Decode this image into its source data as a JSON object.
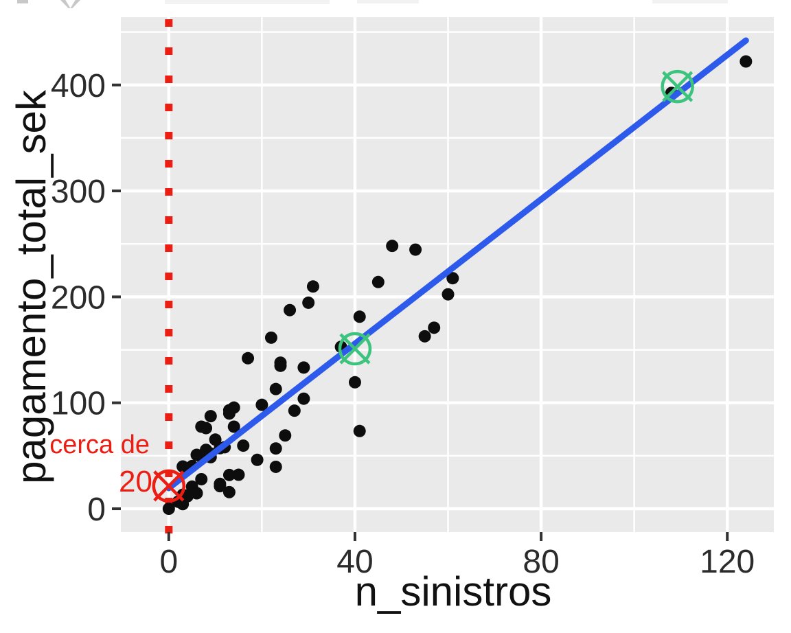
{
  "chart_data": {
    "type": "scatter",
    "title": "",
    "xlabel": "n_sinistros",
    "ylabel": "pagamento_total_sek",
    "x_ticks": [
      0,
      40,
      80,
      120
    ],
    "x_minor_ticks": [
      20,
      60,
      100
    ],
    "y_ticks": [
      0,
      100,
      200,
      300,
      400
    ],
    "y_minor_ticks": [
      50,
      150,
      250,
      350,
      450
    ],
    "xlim": [
      -10.3,
      130.0
    ],
    "ylim": [
      -22.0,
      464.0
    ],
    "grid": true,
    "legend": "none",
    "panel_bg": "#eaeaea",
    "grid_color": "#ffffff",
    "point_color": "#0d0d0d",
    "tick_label_color": "#2b2b2b",
    "axis_title_color": "#111111",
    "points": [
      [
        108,
        392.5
      ],
      [
        19,
        46.2
      ],
      [
        13,
        15.7
      ],
      [
        124,
        422.2
      ],
      [
        40,
        119.4
      ],
      [
        57,
        170.9
      ],
      [
        23,
        56.9
      ],
      [
        14,
        77.5
      ],
      [
        45,
        214
      ],
      [
        10,
        65.3
      ],
      [
        5,
        20.9
      ],
      [
        48,
        248.1
      ],
      [
        11,
        23.5
      ],
      [
        23,
        39.6
      ],
      [
        7,
        48.8
      ],
      [
        2,
        6.6
      ],
      [
        24,
        134.9
      ],
      [
        6,
        50.9
      ],
      [
        3,
        4.4
      ],
      [
        23,
        113
      ],
      [
        6,
        14.8
      ],
      [
        9,
        48.7
      ],
      [
        9,
        52.1
      ],
      [
        3,
        13.2
      ],
      [
        29,
        103.9
      ],
      [
        7,
        77.5
      ],
      [
        4,
        11.8
      ],
      [
        20,
        98.1
      ],
      [
        7,
        27.9
      ],
      [
        4,
        38.1
      ],
      [
        0,
        0
      ],
      [
        25,
        69.2
      ],
      [
        6,
        14.6
      ],
      [
        5,
        40.3
      ],
      [
        22,
        161.5
      ],
      [
        11,
        57.2
      ],
      [
        61,
        217.6
      ],
      [
        12,
        58.1
      ],
      [
        4,
        12.6
      ],
      [
        16,
        59.6
      ],
      [
        13,
        89.9
      ],
      [
        60,
        202.4
      ],
      [
        41,
        181.3
      ],
      [
        37,
        152.8
      ],
      [
        55,
        162.8
      ],
      [
        41,
        73.4
      ],
      [
        11,
        21.3
      ],
      [
        27,
        92.6
      ],
      [
        8,
        76.1
      ],
      [
        3,
        39.9
      ],
      [
        17,
        142.1
      ],
      [
        13,
        93
      ],
      [
        13,
        31.9
      ],
      [
        15,
        32.1
      ],
      [
        8,
        55.6
      ],
      [
        29,
        133.3
      ],
      [
        30,
        194.5
      ],
      [
        24,
        137.9
      ],
      [
        9,
        87.4
      ],
      [
        31,
        209.8
      ],
      [
        14,
        95.5
      ],
      [
        53,
        244.6
      ],
      [
        26,
        187.5
      ]
    ],
    "regression_line": {
      "x1": 0,
      "y1": 19.5,
      "x2": 124,
      "y2": 442,
      "color": "#2d5aeb"
    },
    "zero_vline": {
      "x": 0,
      "style": "dashed",
      "color": "#eb1e14"
    },
    "highlight_markers": [
      {
        "x": 0,
        "y": 21.5,
        "shape": "circle-x",
        "color": "#eb1e14"
      },
      {
        "x": 40,
        "y": 151,
        "shape": "circle-x",
        "color": "#3cc37d"
      },
      {
        "x": 109.3,
        "y": 398.5,
        "shape": "circle-x",
        "color": "#3cc37d"
      }
    ],
    "annotations": [
      {
        "text": "cerca de",
        "color": "#eb1e14"
      },
      {
        "text": "20",
        "color": "#eb1e14"
      }
    ]
  }
}
